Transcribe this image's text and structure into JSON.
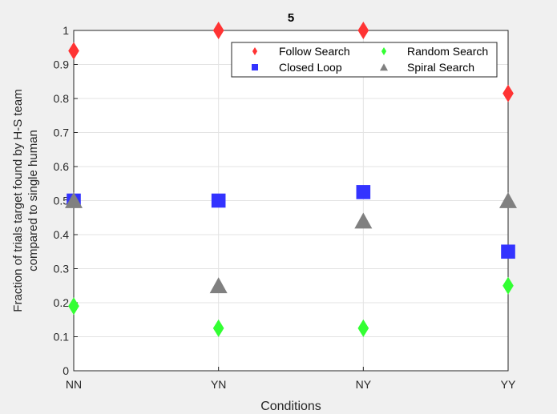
{
  "figure": {
    "background_color": "#f0f0f0",
    "axes_background_color": "#ffffff"
  },
  "chart_data": {
    "type": "scatter",
    "title": "5",
    "xlabel": "Conditions",
    "ylabel_lines": [
      "Fraction of trials target found by H-S team",
      "compared to single human"
    ],
    "categories": [
      "NN",
      "YN",
      "NY",
      "YY"
    ],
    "ylim": [
      0,
      1
    ],
    "yticks": [
      "0",
      "0.1",
      "0.2",
      "0.3",
      "0.4",
      "0.5",
      "0.6",
      "0.7",
      "0.8",
      "0.9",
      "1"
    ],
    "grid": true,
    "legend_position": "top-right",
    "legend_columns": 2,
    "series": [
      {
        "name": "Follow Search",
        "marker": "diamond",
        "color": "#ff3333",
        "values": [
          0.94,
          1.0,
          1.0,
          0.815
        ]
      },
      {
        "name": "Random Search",
        "marker": "diamond",
        "color": "#33ff33",
        "values": [
          0.19,
          0.125,
          0.125,
          0.25
        ]
      },
      {
        "name": "Closed Loop",
        "marker": "square",
        "color": "#3333ff",
        "values": [
          0.5,
          0.5,
          0.525,
          0.35
        ]
      },
      {
        "name": "Spiral Search",
        "marker": "triangle",
        "color": "#808080",
        "values": [
          0.5,
          0.25,
          0.44,
          0.5
        ]
      }
    ]
  }
}
